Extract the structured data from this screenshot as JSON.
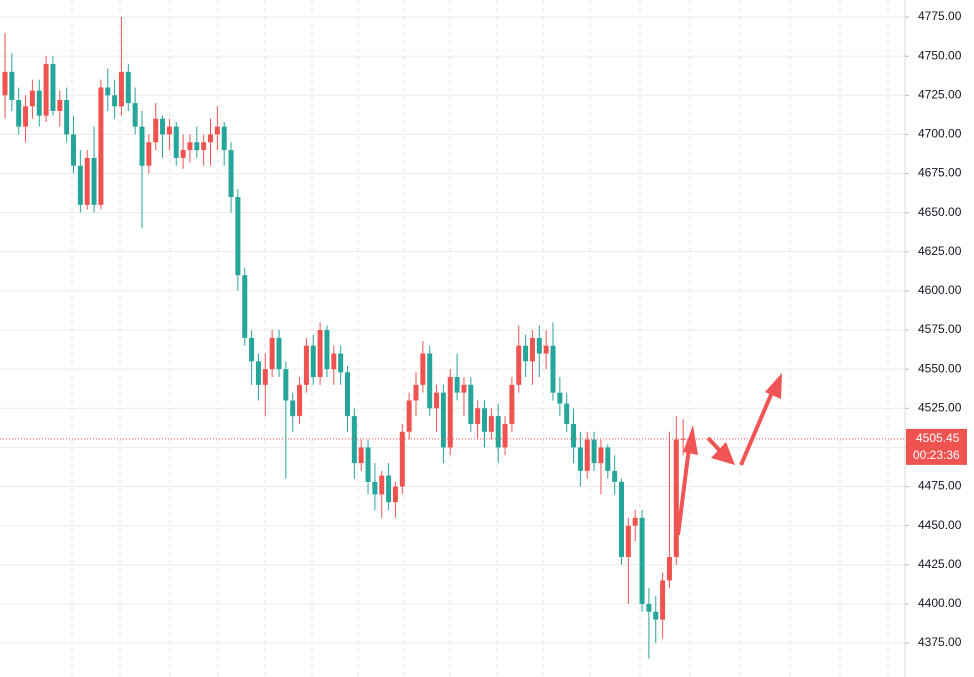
{
  "chart_data": {
    "type": "candlestick",
    "ohlc": [
      [
        4725,
        4765,
        4710,
        4740
      ],
      [
        4740,
        4752,
        4715,
        4722
      ],
      [
        4722,
        4730,
        4700,
        4705
      ],
      [
        4705,
        4725,
        4695,
        4718
      ],
      [
        4718,
        4735,
        4710,
        4728
      ],
      [
        4728,
        4735,
        4705,
        4712
      ],
      [
        4712,
        4750,
        4708,
        4745
      ],
      [
        4745,
        4750,
        4712,
        4715
      ],
      [
        4715,
        4728,
        4705,
        4722
      ],
      [
        4722,
        4730,
        4695,
        4700
      ],
      [
        4700,
        4712,
        4675,
        4680
      ],
      [
        4680,
        4690,
        4650,
        4655
      ],
      [
        4655,
        4690,
        4652,
        4685
      ],
      [
        4685,
        4705,
        4650,
        4655
      ],
      [
        4655,
        4735,
        4652,
        4730
      ],
      [
        4730,
        4742,
        4715,
        4725
      ],
      [
        4725,
        4735,
        4710,
        4718
      ],
      [
        4718,
        4775,
        4712,
        4740
      ],
      [
        4740,
        4745,
        4715,
        4720
      ],
      [
        4720,
        4730,
        4700,
        4705
      ],
      [
        4705,
        4715,
        4640,
        4680
      ],
      [
        4680,
        4700,
        4675,
        4695
      ],
      [
        4695,
        4720,
        4690,
        4710
      ],
      [
        4710,
        4712,
        4685,
        4700
      ],
      [
        4700,
        4710,
        4690,
        4705
      ],
      [
        4705,
        4708,
        4680,
        4685
      ],
      [
        4685,
        4700,
        4678,
        4690
      ],
      [
        4690,
        4700,
        4682,
        4695
      ],
      [
        4695,
        4705,
        4685,
        4690
      ],
      [
        4690,
        4700,
        4680,
        4695
      ],
      [
        4695,
        4710,
        4680,
        4700
      ],
      [
        4700,
        4718,
        4690,
        4705
      ],
      [
        4705,
        4708,
        4680,
        4690
      ],
      [
        4690,
        4695,
        4650,
        4660
      ],
      [
        4660,
        4665,
        4600,
        4610
      ],
      [
        4610,
        4615,
        4565,
        4570
      ],
      [
        4570,
        4575,
        4540,
        4555
      ],
      [
        4555,
        4560,
        4530,
        4540
      ],
      [
        4540,
        4560,
        4520,
        4550
      ],
      [
        4550,
        4575,
        4545,
        4570
      ],
      [
        4570,
        4575,
        4545,
        4550
      ],
      [
        4550,
        4555,
        4480,
        4530
      ],
      [
        4530,
        4535,
        4510,
        4520
      ],
      [
        4520,
        4545,
        4515,
        4540
      ],
      [
        4540,
        4570,
        4535,
        4565
      ],
      [
        4565,
        4572,
        4540,
        4545
      ],
      [
        4545,
        4580,
        4540,
        4575
      ],
      [
        4575,
        4578,
        4545,
        4550
      ],
      [
        4550,
        4565,
        4540,
        4560
      ],
      [
        4560,
        4565,
        4540,
        4548
      ],
      [
        4548,
        4552,
        4510,
        4520
      ],
      [
        4520,
        4525,
        4480,
        4490
      ],
      [
        4490,
        4505,
        4485,
        4500
      ],
      [
        4500,
        4505,
        4470,
        4478
      ],
      [
        4478,
        4490,
        4460,
        4470
      ],
      [
        4470,
        4485,
        4455,
        4482
      ],
      [
        4482,
        4490,
        4460,
        4465
      ],
      [
        4465,
        4478,
        4455,
        4475
      ],
      [
        4475,
        4515,
        4470,
        4510
      ],
      [
        4510,
        4535,
        4505,
        4530
      ],
      [
        4530,
        4548,
        4520,
        4540
      ],
      [
        4540,
        4568,
        4535,
        4560
      ],
      [
        4560,
        4565,
        4520,
        4525
      ],
      [
        4525,
        4540,
        4510,
        4535
      ],
      [
        4535,
        4540,
        4490,
        4500
      ],
      [
        4500,
        4550,
        4495,
        4545
      ],
      [
        4545,
        4560,
        4530,
        4535
      ],
      [
        4535,
        4545,
        4520,
        4540
      ],
      [
        4540,
        4545,
        4510,
        4515
      ],
      [
        4515,
        4530,
        4505,
        4525
      ],
      [
        4525,
        4530,
        4500,
        4510
      ],
      [
        4510,
        4525,
        4505,
        4520
      ],
      [
        4520,
        4528,
        4490,
        4500
      ],
      [
        4500,
        4520,
        4495,
        4515
      ],
      [
        4515,
        4545,
        4510,
        4540
      ],
      [
        4540,
        4578,
        4535,
        4565
      ],
      [
        4565,
        4572,
        4545,
        4555
      ],
      [
        4555,
        4575,
        4540,
        4570
      ],
      [
        4570,
        4578,
        4545,
        4560
      ],
      [
        4560,
        4575,
        4550,
        4565
      ],
      [
        4565,
        4580,
        4530,
        4535
      ],
      [
        4535,
        4545,
        4520,
        4528
      ],
      [
        4528,
        4535,
        4510,
        4515
      ],
      [
        4515,
        4525,
        4490,
        4500
      ],
      [
        4500,
        4510,
        4475,
        4485
      ],
      [
        4485,
        4510,
        4480,
        4505
      ],
      [
        4505,
        4510,
        4485,
        4490
      ],
      [
        4490,
        4505,
        4470,
        4500
      ],
      [
        4500,
        4502,
        4480,
        4485
      ],
      [
        4485,
        4495,
        4470,
        4478
      ],
      [
        4478,
        4480,
        4425,
        4430
      ],
      [
        4430,
        4455,
        4400,
        4450
      ],
      [
        4450,
        4460,
        4440,
        4455
      ],
      [
        4455,
        4460,
        4395,
        4400
      ],
      [
        4400,
        4410,
        4365,
        4395
      ],
      [
        4395,
        4405,
        4375,
        4390
      ],
      [
        4390,
        4420,
        4378,
        4415
      ],
      [
        4415,
        4510,
        4410,
        4430
      ],
      [
        4430,
        4520,
        4425,
        4505
      ],
      [
        4505,
        4518,
        4495,
        4505.45
      ]
    ],
    "up_color": "#ef5350",
    "down_color": "#26a69a",
    "ylim": [
      4353.3,
      4785.9
    ],
    "yticks": [
      4375,
      4400,
      4425,
      4450,
      4475,
      4500,
      4525,
      4550,
      4575,
      4600,
      4625,
      4650,
      4675,
      4700,
      4725,
      4750,
      4775
    ],
    "yticks_labels": [
      "4375.00",
      "4400.00",
      "4425.00",
      "4450.00",
      "4475.00",
      "4500.00",
      "4525.00",
      "4550.00",
      "4575.00",
      "4600.00",
      "4625.00",
      "4650.00",
      "4675.00",
      "4700.00",
      "4725.00",
      "4750.00",
      "4775.00"
    ],
    "grid": true,
    "last_price": 4505.45,
    "countdown": "00:23:36"
  }
}
